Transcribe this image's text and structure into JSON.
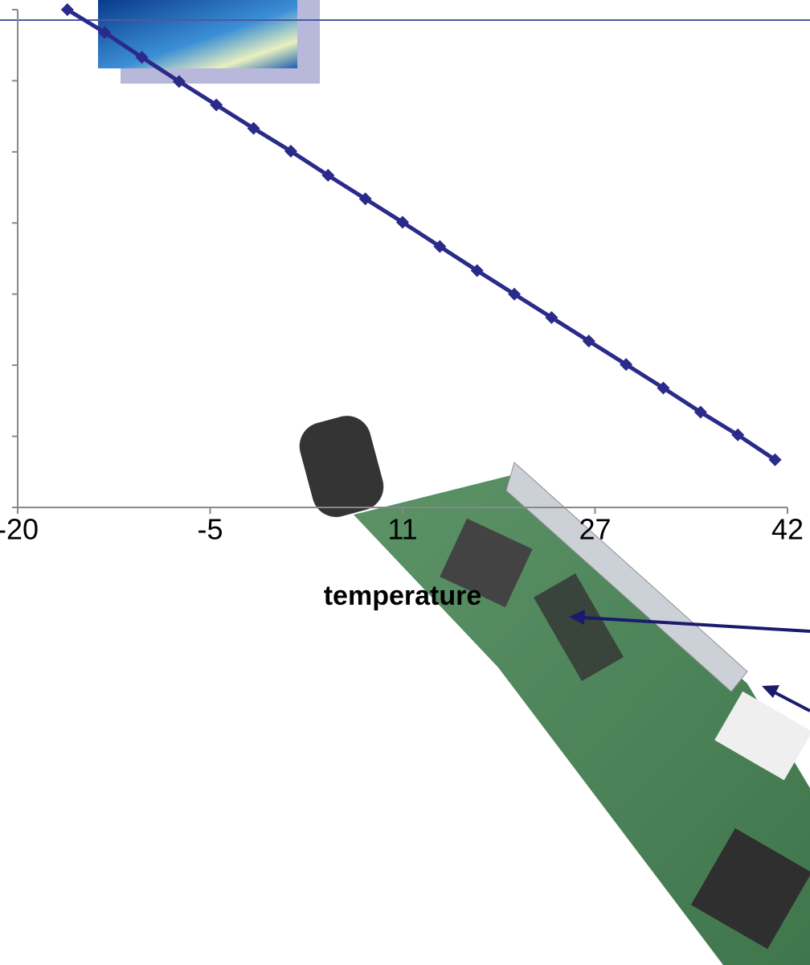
{
  "chart_data": {
    "type": "line",
    "x_label": "temperature",
    "x": [
      -16,
      -13,
      -10,
      -7,
      -4,
      -1,
      2,
      5,
      8,
      11,
      14,
      17,
      20,
      23,
      26,
      29,
      32,
      35,
      38,
      41
    ],
    "series": [
      {
        "color": "#2a2a8a",
        "values": [
          7.0,
          6.68,
          6.33,
          5.99,
          5.66,
          5.33,
          5.01,
          4.67,
          4.34,
          4.01,
          3.67,
          3.33,
          3.0,
          2.67,
          2.34,
          2.01,
          1.68,
          1.34,
          1.02,
          0.67
        ]
      }
    ],
    "xlim": [
      -20,
      42
    ],
    "xticks": [
      -20,
      {
        "value": -4.5,
        "label": "-5"
      },
      11,
      {
        "value": 26.5,
        "label": "27"
      },
      42
    ],
    "ylim": [
      0,
      7
    ],
    "yticks": [
      0,
      1,
      2,
      3,
      4,
      5,
      6,
      7
    ]
  }
}
